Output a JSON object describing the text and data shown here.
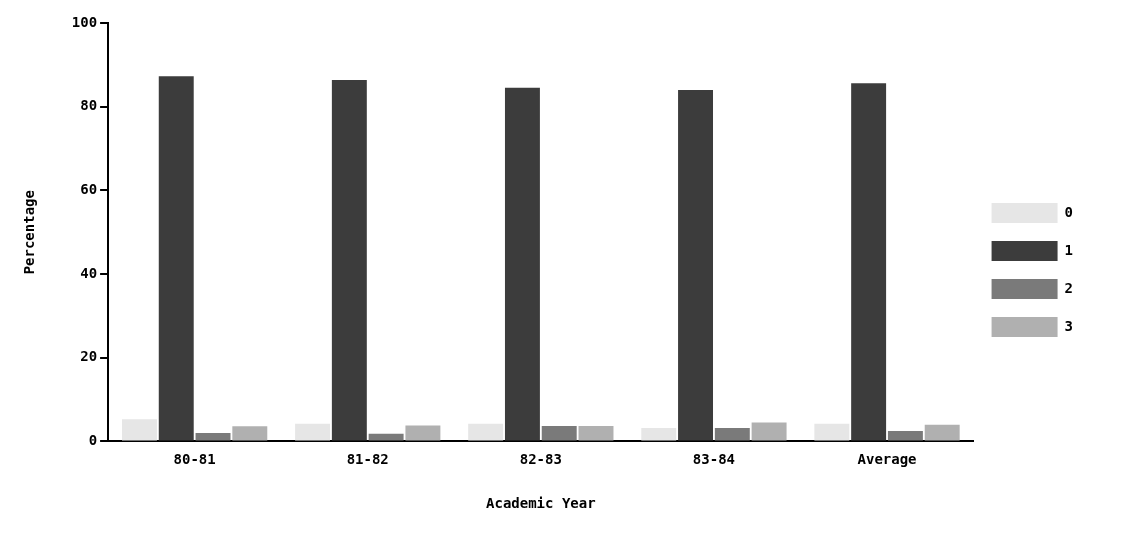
{
  "chart_data": {
    "type": "bar",
    "xlabel": "Academic Year",
    "ylabel": "Percentage",
    "categories": [
      "80-81",
      "81-82",
      "82-83",
      "83-84",
      "Average"
    ],
    "series": [
      {
        "name": "0",
        "color": "#e6e6e6",
        "values": [
          5.3,
          4.2,
          4.2,
          3.2,
          4.2
        ]
      },
      {
        "name": "1",
        "color": "#3c3c3c",
        "values": [
          87.3,
          86.4,
          84.5,
          84,
          85.6
        ]
      },
      {
        "name": "2",
        "color": "#7a7a7a",
        "values": [
          2,
          1.8,
          3.7,
          3.2,
          2.5
        ]
      },
      {
        "name": "3",
        "color": "#b0b0b0",
        "values": [
          3.6,
          3.8,
          3.7,
          4.5,
          4
        ]
      }
    ],
    "ylim": [
      0,
      100
    ],
    "yticks": [
      0,
      20,
      40,
      60,
      80,
      100
    ],
    "grid": false,
    "legend": "right"
  }
}
